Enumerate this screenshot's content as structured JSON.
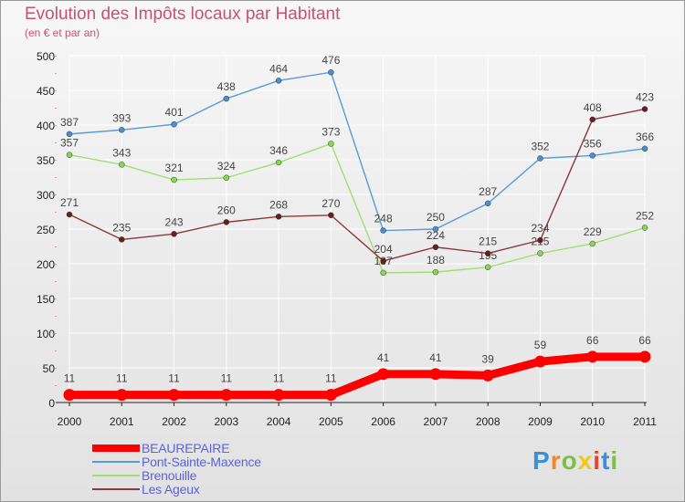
{
  "chart_data": {
    "type": "line",
    "title": "Evolution des Impôts locaux par Habitant",
    "subtitle": "(en € et par an)",
    "xlabel": "",
    "ylabel": "",
    "ylim": [
      0,
      500
    ],
    "yticks": [
      0,
      50,
      100,
      150,
      200,
      250,
      300,
      350,
      400,
      450,
      500
    ],
    "categories": [
      "2000",
      "2001",
      "2002",
      "2003",
      "2004",
      "2005",
      "2006",
      "2007",
      "2008",
      "2009",
      "2010",
      "2011"
    ],
    "grid": true,
    "legend_position": "bottom-left",
    "series": [
      {
        "name": "BEAUREPAIRE",
        "color": "#ff0000",
        "emphasis": true,
        "values": [
          11,
          11,
          11,
          11,
          11,
          11,
          41,
          41,
          39,
          59,
          66,
          66
        ],
        "labels": [
          "11",
          "11",
          "11",
          "11",
          "11",
          "11",
          "41",
          "41",
          "39",
          "59",
          "66",
          "66"
        ]
      },
      {
        "name": "Pont-Sainte-Maxence",
        "color": "#5a9ad6",
        "marker": "#4a8fd0",
        "values": [
          387,
          393,
          401,
          438,
          464,
          476,
          248,
          250,
          287,
          352,
          356,
          366
        ],
        "labels": [
          "387",
          "393",
          "401",
          "438",
          "464",
          "476",
          "248",
          "250",
          "287",
          "352",
          "356",
          "366"
        ]
      },
      {
        "name": "Brenouille",
        "color": "#9ee070",
        "marker": "#86d94e",
        "values": [
          357,
          343,
          321,
          324,
          346,
          373,
          187,
          188,
          195,
          215,
          229,
          252
        ],
        "labels": [
          "357",
          "343",
          "321",
          "324",
          "346",
          "373",
          "187",
          "188",
          "195",
          "215",
          "229",
          "252"
        ]
      },
      {
        "name": "Les Ageux",
        "color": "#8a3a3a",
        "marker": "#6a1d1d",
        "values": [
          271,
          235,
          243,
          260,
          268,
          270,
          204,
          224,
          215,
          234,
          408,
          423
        ],
        "labels": [
          "271",
          "235",
          "243",
          "260",
          "268",
          "270",
          "204",
          "224",
          "215",
          "234",
          "408",
          "423"
        ]
      }
    ]
  },
  "logo": {
    "text": "Proxiti",
    "letters": [
      "P",
      "r",
      "o",
      "x",
      "i",
      "t",
      "i"
    ],
    "colors": [
      "#3a8fd8",
      "#f08a1c",
      "#7ac142",
      "#f5c518",
      "#e8452c",
      "#3a8fd8",
      "#7ac142"
    ]
  }
}
